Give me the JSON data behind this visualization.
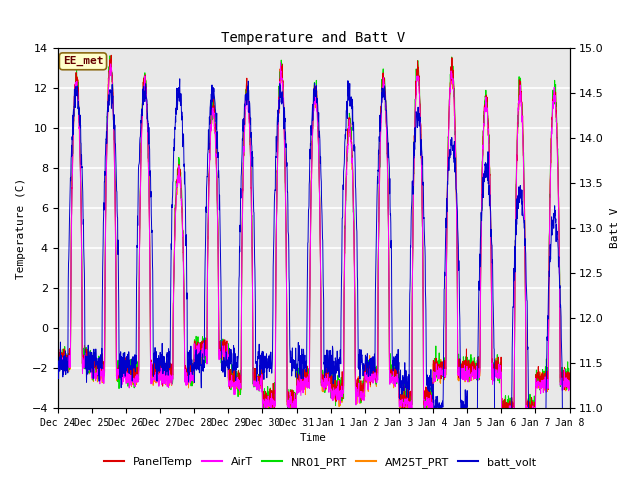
{
  "title": "Temperature and Batt V",
  "xlabel": "Time",
  "ylabel_left": "Temperature (C)",
  "ylabel_right": "Batt V",
  "annotation": "EE_met",
  "ylim_left": [
    -4,
    14
  ],
  "ylim_right": [
    11.0,
    15.0
  ],
  "yticks_left": [
    -4,
    -2,
    0,
    2,
    4,
    6,
    8,
    10,
    12,
    14
  ],
  "yticks_right": [
    11.0,
    11.5,
    12.0,
    12.5,
    13.0,
    13.5,
    14.0,
    14.5,
    15.0
  ],
  "xtick_labels": [
    "Dec 24",
    "Dec 25",
    "Dec 26",
    "Dec 27",
    "Dec 28",
    "Dec 29",
    "Dec 30",
    "Dec 31",
    "Jan 1",
    "Jan 2",
    "Jan 3",
    "Jan 4",
    "Jan 5",
    "Jan 6",
    "Jan 7",
    "Jan 8"
  ],
  "fig_bg": "#ffffff",
  "plot_bg": "#e8e8e8",
  "grid_color": "#ffffff",
  "series_colors": {
    "PanelTemp": "#dd0000",
    "AirT": "#ff00ff",
    "NR01_PRT": "#00dd00",
    "AM25T_PRT": "#ff8800",
    "batt_volt": "#0000cc"
  },
  "legend_entries": [
    "PanelTemp",
    "AirT",
    "NR01_PRT",
    "AM25T_PRT",
    "batt_volt"
  ],
  "legend_colors": [
    "#dd0000",
    "#ff00ff",
    "#00dd00",
    "#ff8800",
    "#0000cc"
  ],
  "daily_peaks": [
    12.5,
    13.3,
    12.5,
    8.0,
    11.1,
    12.0,
    13.0,
    12.0,
    10.3,
    12.5,
    12.9,
    13.0,
    11.5,
    12.0,
    11.8
  ],
  "daily_troughs": [
    -1.5,
    -2.0,
    -2.2,
    -2.2,
    -1.0,
    -2.5,
    -3.5,
    -2.5,
    -3.0,
    -2.2,
    -3.5,
    -2.0,
    -2.0,
    -4.0,
    -2.5
  ]
}
